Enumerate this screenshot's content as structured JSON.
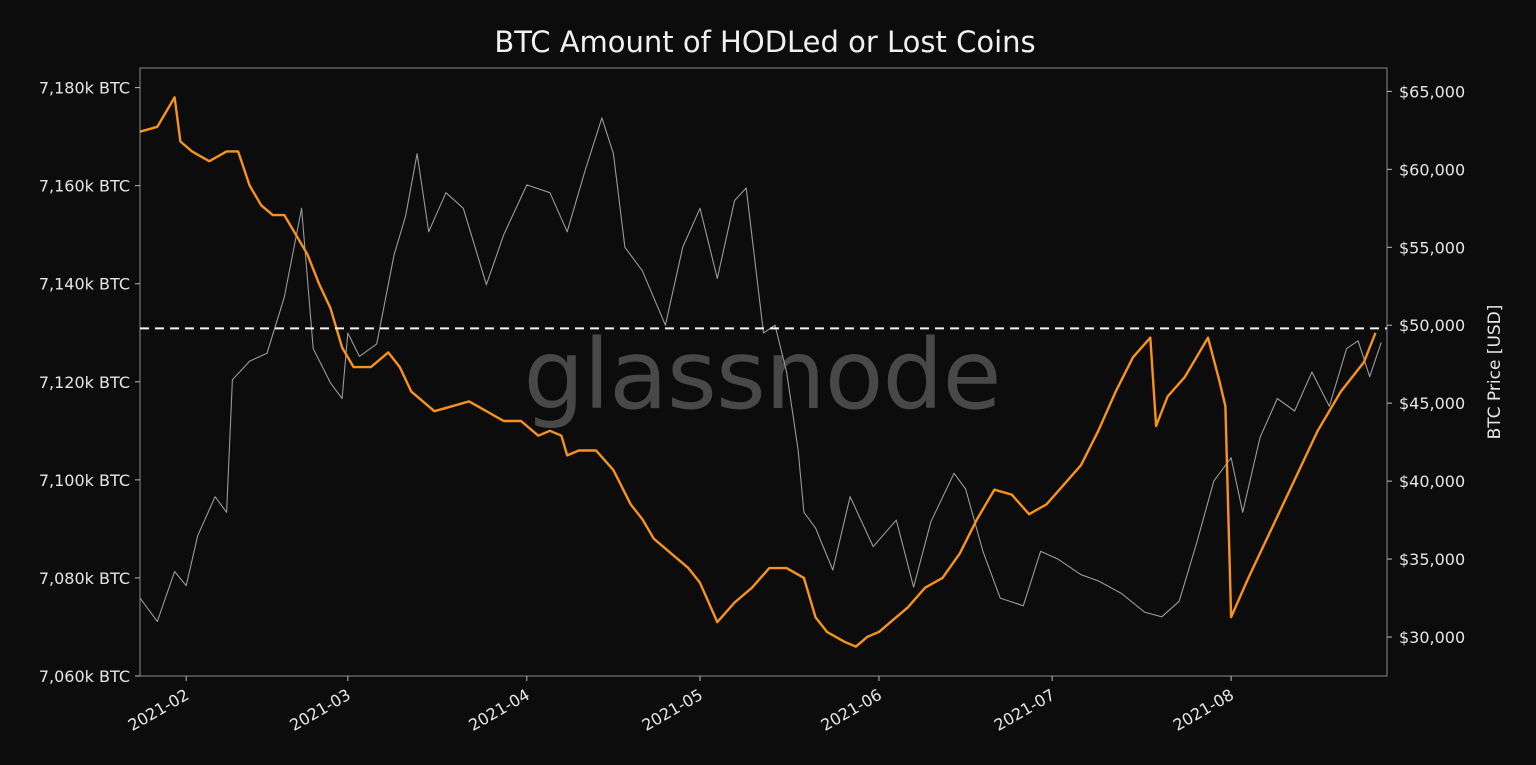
{
  "chart_data": {
    "type": "line",
    "title": "BTC Amount of HODLed or Lost Coins",
    "watermark": "glassnode",
    "x_tick_labels": [
      "2021-02",
      "2021-03",
      "2021-04",
      "2021-05",
      "2021-06",
      "2021-07",
      "2021-08"
    ],
    "x_range": [
      "2021-01-24",
      "2021-08-28"
    ],
    "y_left": {
      "label": "",
      "range": [
        7060,
        7184
      ],
      "ticks": [
        7060,
        7080,
        7100,
        7120,
        7140,
        7160,
        7180
      ],
      "tick_labels": [
        "7,060k BTC",
        "7,080k BTC",
        "7,100k BTC",
        "7,120k BTC",
        "7,140k BTC",
        "7,160k BTC",
        "7,180k BTC"
      ]
    },
    "y_right": {
      "label": "BTC Price [USD]",
      "range": [
        27500,
        66500
      ],
      "ticks": [
        30000,
        35000,
        40000,
        45000,
        50000,
        55000,
        60000,
        65000
      ],
      "tick_labels": [
        "$30,000",
        "$35,000",
        "$40,000",
        "$45,000",
        "$50,000",
        "$55,000",
        "$60,000",
        "$65,000"
      ]
    },
    "reference_line": {
      "axis": "right",
      "value": 49800,
      "style": "dashed",
      "color": "#f2f2f2"
    },
    "grid": false,
    "series": [
      {
        "axis": "left",
        "color": "#f7931a",
        "x": [
          "2021-01-24",
          "2021-01-27",
          "2021-01-30",
          "2021-01-31",
          "2021-02-02",
          "2021-02-05",
          "2021-02-08",
          "2021-02-10",
          "2021-02-12",
          "2021-02-14",
          "2021-02-16",
          "2021-02-18",
          "2021-02-20",
          "2021-02-22",
          "2021-02-24",
          "2021-02-26",
          "2021-02-28",
          "2021-03-02",
          "2021-03-05",
          "2021-03-08",
          "2021-03-10",
          "2021-03-12",
          "2021-03-14",
          "2021-03-16",
          "2021-03-19",
          "2021-03-22",
          "2021-03-25",
          "2021-03-28",
          "2021-03-31",
          "2021-04-03",
          "2021-04-05",
          "2021-04-07",
          "2021-04-08",
          "2021-04-10",
          "2021-04-13",
          "2021-04-16",
          "2021-04-19",
          "2021-04-21",
          "2021-04-23",
          "2021-04-26",
          "2021-04-29",
          "2021-05-01",
          "2021-05-04",
          "2021-05-07",
          "2021-05-10",
          "2021-05-13",
          "2021-05-16",
          "2021-05-19",
          "2021-05-21",
          "2021-05-23",
          "2021-05-26",
          "2021-05-28",
          "2021-05-30",
          "2021-06-01",
          "2021-06-03",
          "2021-06-06",
          "2021-06-09",
          "2021-06-12",
          "2021-06-15",
          "2021-06-18",
          "2021-06-21",
          "2021-06-24",
          "2021-06-27",
          "2021-06-30",
          "2021-07-03",
          "2021-07-06",
          "2021-07-09",
          "2021-07-12",
          "2021-07-15",
          "2021-07-18",
          "2021-07-19",
          "2021-07-21",
          "2021-07-24",
          "2021-07-28",
          "2021-07-30",
          "2021-07-31",
          "2021-08-01",
          "2021-08-04",
          "2021-08-08",
          "2021-08-12",
          "2021-08-16",
          "2021-08-20",
          "2021-08-24",
          "2021-08-26"
        ],
        "values": [
          7171,
          7172,
          7178,
          7169,
          7167,
          7165,
          7167,
          7167,
          7160,
          7156,
          7154,
          7154,
          7150,
          7146,
          7140,
          7135,
          7127,
          7123,
          7123,
          7126,
          7123,
          7118,
          7116,
          7114,
          7115,
          7116,
          7114,
          7112,
          7112,
          7109,
          7110,
          7109,
          7105,
          7106,
          7106,
          7102,
          7095,
          7092,
          7088,
          7085,
          7082,
          7079,
          7071,
          7075,
          7078,
          7082,
          7082,
          7080,
          7072,
          7069,
          7067,
          7066,
          7068,
          7069,
          7071,
          7074,
          7078,
          7080,
          7085,
          7092,
          7098,
          7097,
          7093,
          7095,
          7099,
          7103,
          7110,
          7118,
          7125,
          7129,
          7111,
          7117,
          7121,
          7129,
          7120,
          7115,
          7072,
          7080,
          7090,
          7100,
          7110,
          7118,
          7124,
          7130
        ]
      },
      {
        "axis": "right",
        "color": "#9a9a9a",
        "x": [
          "2021-01-24",
          "2021-01-27",
          "2021-01-30",
          "2021-02-01",
          "2021-02-03",
          "2021-02-06",
          "2021-02-08",
          "2021-02-09",
          "2021-02-12",
          "2021-02-15",
          "2021-02-18",
          "2021-02-21",
          "2021-02-23",
          "2021-02-26",
          "2021-02-28",
          "2021-03-01",
          "2021-03-03",
          "2021-03-06",
          "2021-03-09",
          "2021-03-11",
          "2021-03-13",
          "2021-03-15",
          "2021-03-18",
          "2021-03-21",
          "2021-03-25",
          "2021-03-28",
          "2021-04-01",
          "2021-04-05",
          "2021-04-08",
          "2021-04-11",
          "2021-04-14",
          "2021-04-16",
          "2021-04-18",
          "2021-04-21",
          "2021-04-25",
          "2021-04-28",
          "2021-05-01",
          "2021-05-04",
          "2021-05-07",
          "2021-05-09",
          "2021-05-12",
          "2021-05-14",
          "2021-05-16",
          "2021-05-18",
          "2021-05-19",
          "2021-05-21",
          "2021-05-24",
          "2021-05-27",
          "2021-05-31",
          "2021-06-04",
          "2021-06-07",
          "2021-06-10",
          "2021-06-14",
          "2021-06-16",
          "2021-06-19",
          "2021-06-22",
          "2021-06-26",
          "2021-06-29",
          "2021-07-02",
          "2021-07-06",
          "2021-07-09",
          "2021-07-13",
          "2021-07-17",
          "2021-07-20",
          "2021-07-23",
          "2021-07-26",
          "2021-07-29",
          "2021-08-01",
          "2021-08-03",
          "2021-08-06",
          "2021-08-09",
          "2021-08-12",
          "2021-08-15",
          "2021-08-18",
          "2021-08-21",
          "2021-08-23",
          "2021-08-25",
          "2021-08-27"
        ],
        "values": [
          32500,
          31000,
          34200,
          33300,
          36500,
          39000,
          38000,
          46500,
          47700,
          48200,
          51800,
          57500,
          48500,
          46300,
          45300,
          49500,
          48000,
          48800,
          54500,
          57000,
          61000,
          56000,
          58500,
          57500,
          52600,
          55800,
          59000,
          58500,
          56000,
          59800,
          63300,
          61000,
          55000,
          53500,
          50000,
          55000,
          57500,
          53000,
          58000,
          58800,
          49500,
          50000,
          47000,
          42000,
          38000,
          37000,
          34300,
          39000,
          35800,
          37500,
          33200,
          37400,
          40500,
          39500,
          35500,
          32500,
          32000,
          35500,
          35000,
          34000,
          33600,
          32800,
          31600,
          31300,
          32300,
          36000,
          40000,
          41500,
          38000,
          42800,
          45300,
          44500,
          47000,
          44800,
          48500,
          49000,
          46700,
          48900
        ]
      }
    ]
  }
}
